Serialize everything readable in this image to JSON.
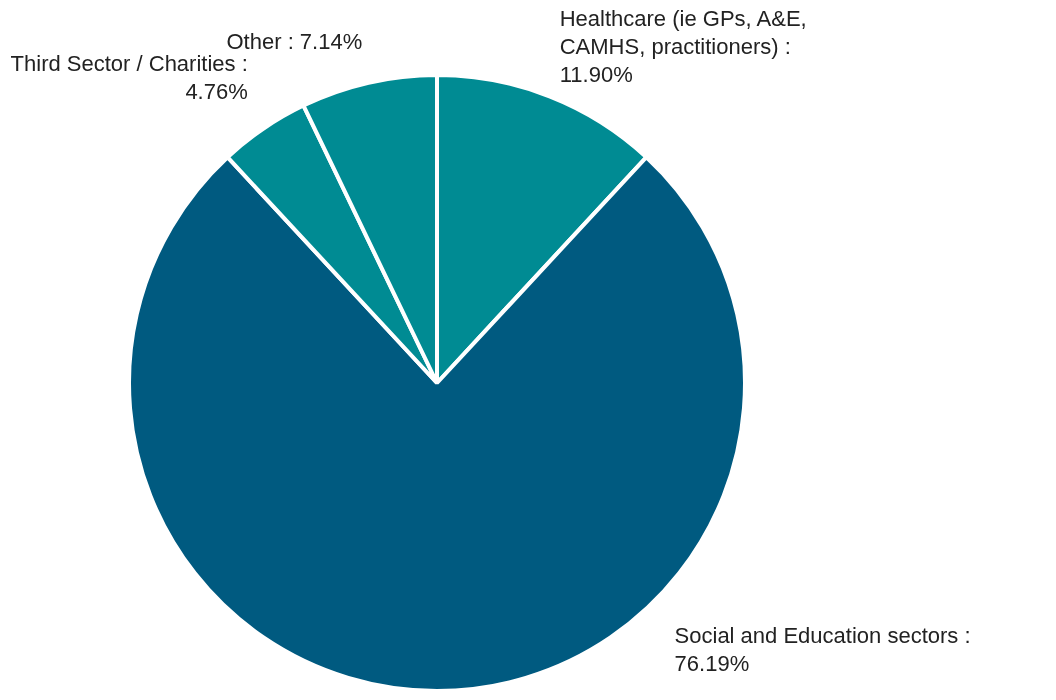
{
  "chart_data": {
    "type": "pie",
    "categories": [
      "Healthcare (ie GPs, A&E, CAMHS, practitioners) : 11.90%",
      "Social and Education sectors : 76.19%",
      "Third Sector / Charities : 4.76%",
      "Other : 7.14%"
    ],
    "values": [
      11.9,
      76.19,
      4.76,
      7.14
    ],
    "colors": [
      "#008b93",
      "#005a80",
      "#008b93",
      "#008b93"
    ],
    "legend": false
  }
}
